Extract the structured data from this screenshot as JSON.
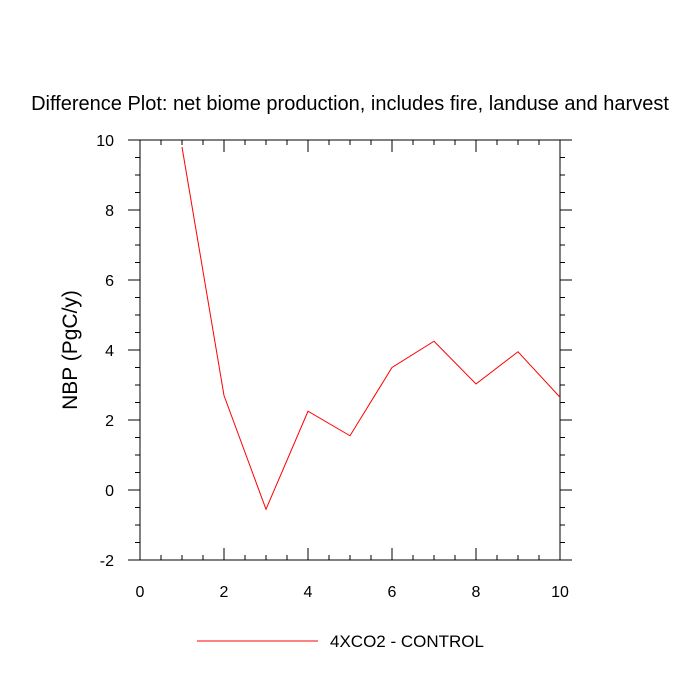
{
  "chart_data": {
    "type": "line",
    "title": "Difference Plot: net biome production, includes fire, landuse and harvest",
    "xlabel": "",
    "ylabel": "NBP  (PgC/y)",
    "xlim": [
      0,
      10
    ],
    "ylim": [
      -2,
      10
    ],
    "xticks": [
      0,
      2,
      4,
      6,
      8,
      10
    ],
    "yticks": [
      -2,
      0,
      2,
      4,
      6,
      8,
      10
    ],
    "grid": false,
    "legend_position": "bottom-center",
    "series": [
      {
        "name": "4XCO2 - CONTROL",
        "color": "#ff0000",
        "x": [
          1,
          2,
          3,
          4,
          5,
          6,
          7,
          8,
          9,
          10
        ],
        "y": [
          9.8,
          2.7,
          -0.55,
          2.25,
          1.55,
          3.5,
          4.25,
          3.03,
          3.95,
          2.65
        ]
      }
    ]
  }
}
